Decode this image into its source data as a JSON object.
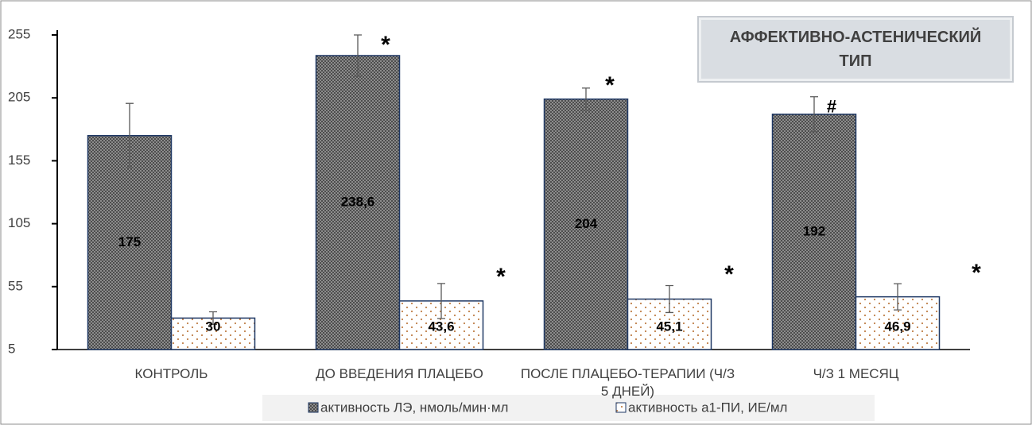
{
  "chart_data": {
    "type": "bar",
    "title": "АФФЕКТИВНО-АСТЕНИЧЕСКИЙ ТИП",
    "categories": [
      "КОНТРОЛЬ",
      "ДО ВВЕДЕНИЯ ПЛАЦЕБО",
      "ПОСЛЕ ПЛАЦЕБО-ТЕРАПИИ (Ч/З 5 ДНЕЙ)",
      "Ч/З 1 МЕСЯЦ"
    ],
    "series": [
      {
        "name": "активность ЛЭ, нмоль/мин·мл",
        "color": "#7f7f7f",
        "values": [
          175,
          238.6,
          204,
          192
        ],
        "value_labels": [
          "175",
          "238,6",
          "204",
          "192"
        ],
        "errors": [
          25.6,
          16.4,
          8.8,
          13.9
        ]
      },
      {
        "name": "активность а1-ПИ, ИЕ/мл",
        "color": "#ffffff",
        "values": [
          30,
          43.6,
          45.1,
          46.9
        ],
        "value_labels": [
          "30",
          "43,6",
          "45,1",
          "46,9"
        ],
        "errors": [
          5,
          13.9,
          10.7,
          10.4
        ]
      }
    ],
    "ylim": [
      5,
      255
    ],
    "yticks": [
      5,
      55,
      105,
      155,
      205,
      255
    ],
    "annotations": [
      "*",
      "*",
      "#",
      "*",
      "*",
      "*"
    ],
    "legend": "bottom"
  }
}
